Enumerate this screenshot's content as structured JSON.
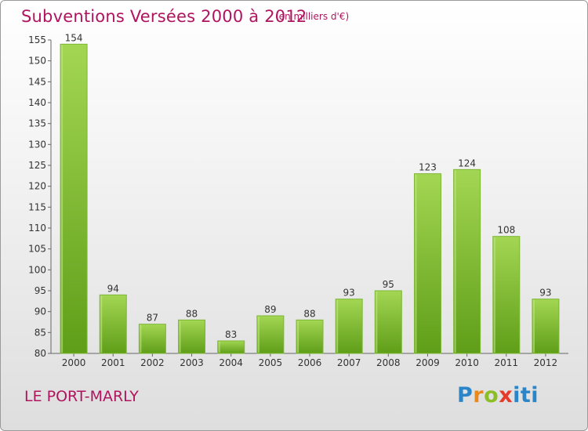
{
  "header": {
    "title": "Subventions Versées 2000 à 2012",
    "subtitle": "(en milliers d'€)"
  },
  "footer": {
    "commune": "LE PORT-MARLY",
    "logo_text": "Proxiti"
  },
  "colors": {
    "title": "#b0145f",
    "bar_light": "#9fd14f",
    "bar_dark": "#5f9e18",
    "axis": "#555555"
  },
  "chart_data": {
    "type": "bar",
    "title": "Subventions Versées 2000 à 2012",
    "subtitle": "(en milliers d'€)",
    "xlabel": "",
    "ylabel": "",
    "categories": [
      "2000",
      "2001",
      "2002",
      "2003",
      "2004",
      "2005",
      "2006",
      "2007",
      "2008",
      "2009",
      "2010",
      "2011",
      "2012"
    ],
    "values": [
      154,
      94,
      87,
      88,
      83,
      89,
      88,
      93,
      95,
      123,
      124,
      108,
      93
    ],
    "ylim": [
      80,
      155
    ],
    "yticks": [
      80,
      85,
      90,
      95,
      100,
      105,
      110,
      115,
      120,
      125,
      130,
      135,
      140,
      145,
      150,
      155
    ],
    "grid": false,
    "legend": "none"
  }
}
